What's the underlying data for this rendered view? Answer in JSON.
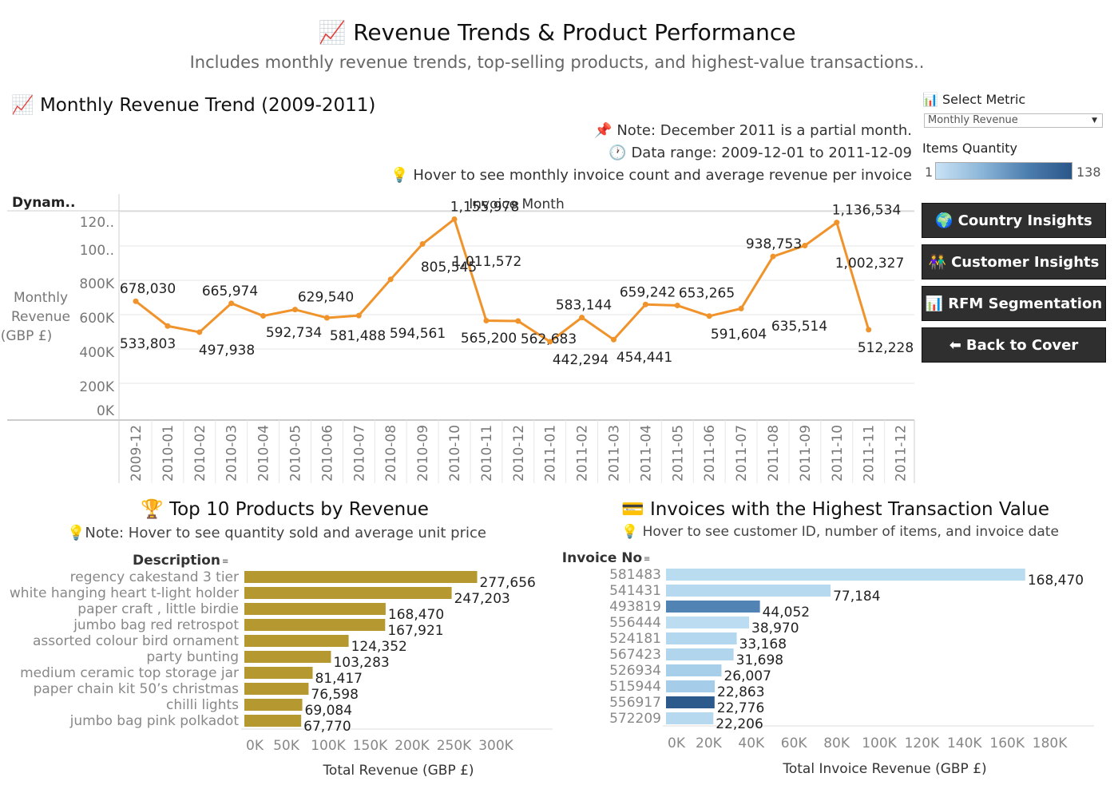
{
  "header": {
    "title": "📈 Revenue Trends & Product Performance",
    "subtitle": "Includes monthly revenue trends, top-selling products, and highest-value transactions.."
  },
  "trend": {
    "title": "📈 Monthly Revenue Trend (2009-2011)",
    "notes": [
      "📌 Note: December 2011 is a partial month.",
      "🕐 Data range: 2009-12-01 to 2011-12-09",
      "💡 Hover to see monthly invoice count and average revenue per invoice"
    ],
    "row_header": "Dynam..",
    "col_header": "Invoice Month"
  },
  "controls": {
    "select_label": "📊 Select Metric",
    "select_value": "Monthly Revenue",
    "legend_title": "Items Quantity",
    "legend_min": "1",
    "legend_max": "138"
  },
  "nav": [
    {
      "icon": "🌍",
      "label": "Country Insights"
    },
    {
      "icon": "👫",
      "label": "Customer Insights"
    },
    {
      "icon": "📊",
      "label": "RFM Segmentation"
    },
    {
      "icon": "⬅",
      "label": "Back to Cover"
    }
  ],
  "colors": {
    "line": "#f0932b",
    "product_bar": "#b5982f",
    "invoice_light": "#b7daf0",
    "grid": "#e6e6e6",
    "nav_bg": "#2f2f2f"
  },
  "chart_data": [
    {
      "type": "line",
      "title": "Monthly Revenue Trend (2009-2011)",
      "xlabel": "Invoice Month",
      "ylabel": "Monthly Revenue (GBP £)",
      "ylim": [
        0,
        1250000
      ],
      "yticks": [
        "0K",
        "200K",
        "400K",
        "600K",
        "800K",
        "100..",
        "120.."
      ],
      "ytick_values": [
        0,
        200000,
        400000,
        600000,
        800000,
        1000000,
        1200000
      ],
      "x": [
        "2009-12",
        "2010-01",
        "2010-02",
        "2010-03",
        "2010-04",
        "2010-05",
        "2010-06",
        "2010-07",
        "2010-08",
        "2010-09",
        "2010-10",
        "2010-11",
        "2010-12",
        "2011-01",
        "2011-02",
        "2011-03",
        "2011-04",
        "2011-05",
        "2011-06",
        "2011-07",
        "2011-08",
        "2011-09",
        "2011-10",
        "2011-11",
        "2011-12"
      ],
      "values": [
        678030,
        533803,
        497938,
        665974,
        592734,
        629540,
        581488,
        594561,
        805545,
        1011572,
        1155978,
        565200,
        562683,
        442294,
        583144,
        454441,
        659242,
        653265,
        591604,
        635514,
        938753,
        1002327,
        1136534,
        512228,
        null
      ],
      "value_labels": [
        "678,030",
        "533,803",
        "497,938",
        "665,974",
        "592,734",
        "629,540",
        "581,488",
        "594,561",
        "805,545",
        "1,011,572",
        "1,155,978",
        "565,200",
        "562,683",
        "442,294",
        "583,144",
        "454,441",
        "659,242",
        "653,265",
        "591,604",
        "635,514",
        "938,753",
        "1,002,327",
        "1,136,534",
        "512,228",
        ""
      ]
    },
    {
      "type": "bar",
      "title": "🏆 Top 10 Products by Revenue",
      "note": "💡Note: Hover to see quantity sold and average unit price",
      "row_header": "Description",
      "xlabel": "Total Revenue (GBP £)",
      "xlim": [
        0,
        350000
      ],
      "xticks": [
        "0K",
        "50K",
        "100K",
        "150K",
        "200K",
        "250K",
        "300K"
      ],
      "xtick_values": [
        0,
        50000,
        100000,
        150000,
        200000,
        250000,
        300000
      ],
      "categories": [
        "regency cakestand 3 tier",
        "white hanging heart t-light holder",
        "paper craft , little birdie",
        "jumbo bag red retrospot",
        "assorted colour bird ornament",
        "party bunting",
        "medium ceramic top storage jar",
        "paper chain kit 50’s christmas",
        "chilli lights",
        "jumbo bag pink polkadot"
      ],
      "values": [
        277656,
        247203,
        168470,
        167921,
        124352,
        103283,
        81417,
        76598,
        69084,
        67770
      ],
      "value_labels": [
        "277,656",
        "247,203",
        "168,470",
        "167,921",
        "124,352",
        "103,283",
        "81,417",
        "76,598",
        "69,084",
        "67,770"
      ]
    },
    {
      "type": "bar",
      "title": "💳 Invoices with the Highest Transaction Value",
      "note": "💡 Hover to see customer ID, number of items, and invoice date",
      "row_header": "Invoice No",
      "xlabel": "Total Invoice Revenue (GBP £)",
      "xlim": [
        0,
        200000
      ],
      "xticks": [
        "0K",
        "20K",
        "40K",
        "60K",
        "80K",
        "100K",
        "120K",
        "140K",
        "160K",
        "180K"
      ],
      "xtick_values": [
        0,
        20000,
        40000,
        60000,
        80000,
        100000,
        120000,
        140000,
        160000,
        180000
      ],
      "categories": [
        "581483",
        "541431",
        "493819",
        "556444",
        "524181",
        "567423",
        "526934",
        "515944",
        "556917",
        "572209"
      ],
      "values": [
        168470,
        77184,
        44052,
        38970,
        33168,
        31698,
        26007,
        22863,
        22776,
        22206
      ],
      "value_labels": [
        "168,470",
        "77,184",
        "44,052",
        "38,970",
        "33,168",
        "31,698",
        "26,007",
        "22,863",
        "22,776",
        "22,206"
      ],
      "bar_colors": [
        "#b9dcf1",
        "#b6d9ef",
        "#5283b5",
        "#bcdcf1",
        "#b3d7ee",
        "#b1d5ed",
        "#a7cfea",
        "#a5cde9",
        "#2c5a8c",
        "#b6d9ef"
      ]
    }
  ]
}
